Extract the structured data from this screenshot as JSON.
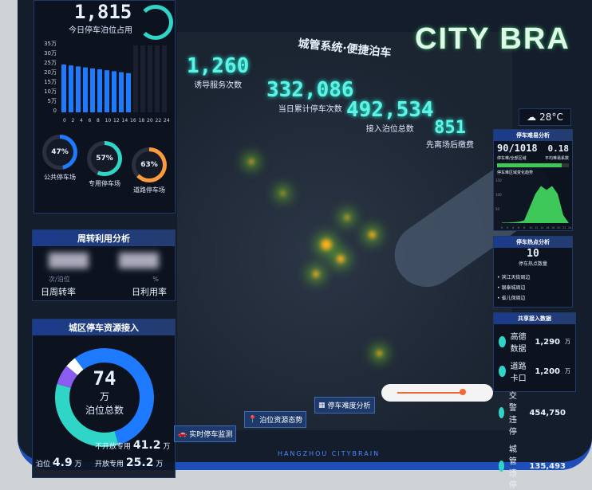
{
  "background": {
    "brand_text": "CITY BRA"
  },
  "header": {
    "title": "城管系统·便捷泊车",
    "footer": "HANGZHOU CITYBRAIN"
  },
  "stats": [
    {
      "value": "1,260",
      "label": "诱导服务次数"
    },
    {
      "value": "332,086",
      "label": "当日累计停车次数"
    },
    {
      "value": "492,534",
      "label": "接入泊位总数"
    },
    {
      "value": "851",
      "label": "先离场后缴费"
    }
  ],
  "left": {
    "occupancy_value": "1,815",
    "occupancy_label": "今日停车泊位占用",
    "occupancy_chart": {
      "type": "bar",
      "yticks": [
        "35万",
        "30万",
        "25万",
        "20万",
        "15万",
        "10万",
        "5万",
        "0"
      ],
      "xticks": [
        "0",
        "2",
        "4",
        "6",
        "8",
        "10",
        "12",
        "14",
        "16",
        "18",
        "20",
        "22",
        "24"
      ],
      "values": [
        25,
        24.5,
        24,
        23.5,
        23,
        22.5,
        22,
        21.5,
        21,
        20.5,
        0,
        0,
        0,
        0,
        0
      ],
      "ylim": [
        0,
        35
      ],
      "unit": "万",
      "bar_color": "#1e7bff"
    },
    "rings": [
      {
        "pct": 47,
        "label": "公共停车场",
        "color": "#1e7bff"
      },
      {
        "pct": 57,
        "label": "专用停车场",
        "color": "#2fd6c8"
      },
      {
        "pct": 63,
        "label": "道路停车场",
        "color": "#ff9a3c"
      }
    ],
    "turnover": {
      "title": "周转利用分析",
      "unit1": "次/泊位",
      "label1": "日周转率",
      "unit2": "%",
      "label2": "日利用率"
    },
    "resources": {
      "title": "城区停车资源接入",
      "total": "74",
      "unit": "万",
      "total_label": "泊位总数",
      "slices": [
        {
          "value": 41.2,
          "color": "#1e7bff"
        },
        {
          "value": 25.2,
          "color": "#2fd6c8"
        },
        {
          "value": 4.9,
          "color": "#8a5cf0"
        },
        {
          "value": 2.7,
          "color": "#ffffff"
        }
      ],
      "legend": [
        {
          "label": "不开放专用",
          "value": "41.2",
          "unit": "万"
        },
        {
          "label": "开放专用",
          "value": "25.2",
          "unit": "万"
        },
        {
          "label": "泊位",
          "value": "4.9",
          "unit": "万"
        }
      ]
    }
  },
  "right": {
    "weather": {
      "icon": "cloud-icon",
      "temp": "28°C"
    },
    "difficulty": {
      "title": "停车难易分析",
      "ratio": "90/1018",
      "ratio_label": "停车难/全部区域",
      "coef": "0.18",
      "coef_label": "平均难易系数",
      "progress": 0.9,
      "trend_label": "停车难区域变化趋势",
      "yticks": [
        "150",
        "100",
        "50"
      ],
      "xticks": [
        "0",
        "2",
        "4",
        "6",
        "8",
        "10",
        "12",
        "14",
        "16",
        "18",
        "20",
        "22",
        "24"
      ],
      "trend": [
        2,
        2,
        3,
        5,
        10,
        60,
        110,
        140,
        125,
        140,
        110,
        30,
        0
      ]
    },
    "hotspot": {
      "title": "停车热点分析",
      "count": "10",
      "count_label": "停车热点数量",
      "items": [
        "滨江天街周边",
        "银泰城周边",
        "省儿保周边"
      ]
    },
    "shared": {
      "title": "共享接入数据",
      "items": [
        {
          "label": "高德数据",
          "value": "1,290",
          "unit": "万"
        },
        {
          "label": "道路卡口",
          "value": "1,200",
          "unit": "万"
        },
        {
          "label": "交警违停",
          "value": "454,750",
          "unit": ""
        },
        {
          "label": "城管违停",
          "value": "135,493",
          "unit": ""
        }
      ]
    }
  },
  "buttons": [
    {
      "label": "实时停车监测",
      "icon": "car-icon"
    },
    {
      "label": "泊位资源态势",
      "icon": "map-pin-icon"
    },
    {
      "label": "停车难度分析",
      "icon": "chart-icon"
    }
  ]
}
